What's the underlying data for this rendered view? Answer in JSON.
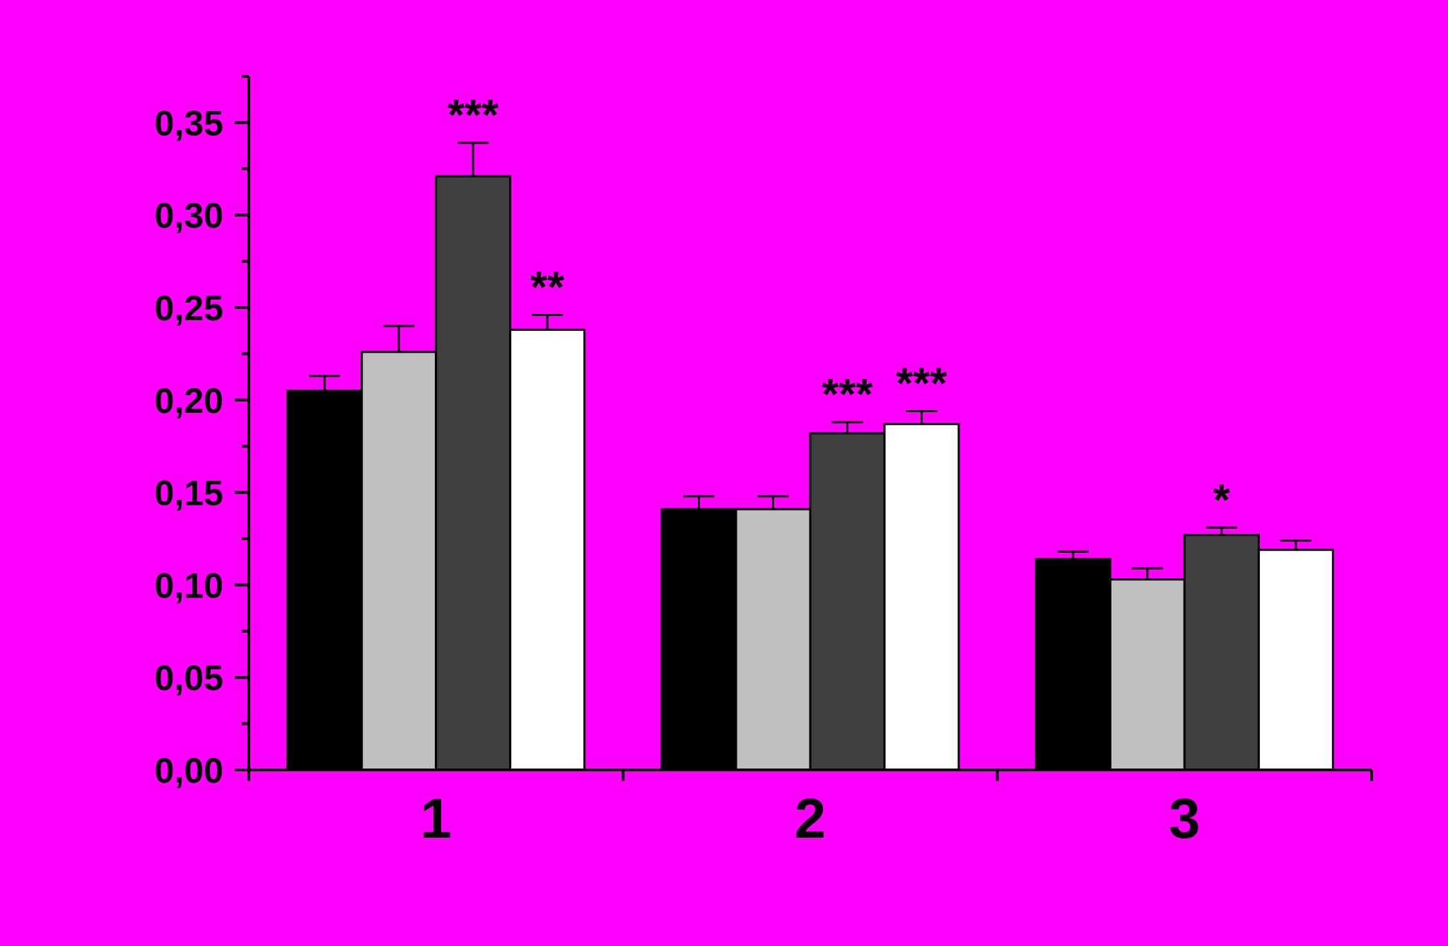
{
  "chart_data": {
    "type": "bar",
    "categories": [
      "1",
      "2",
      "3"
    ],
    "series": [
      {
        "color": "#000000",
        "values": [
          0.205,
          0.141,
          0.114
        ],
        "errors": [
          0.008,
          0.007,
          0.004
        ]
      },
      {
        "color": "#c0c0c0",
        "values": [
          0.226,
          0.141,
          0.103
        ],
        "errors": [
          0.014,
          0.007,
          0.006
        ]
      },
      {
        "color": "#404040",
        "values": [
          0.321,
          0.182,
          0.127
        ],
        "errors": [
          0.018,
          0.006,
          0.004
        ]
      },
      {
        "color": "#ffffff",
        "values": [
          0.238,
          0.187,
          0.119
        ],
        "errors": [
          0.008,
          0.007,
          0.005
        ]
      }
    ],
    "ylim": [
      0,
      0.375
    ],
    "yticks": [
      "0,00",
      "0,05",
      "0,10",
      "0,15",
      "0,20",
      "0,25",
      "0,30",
      "0,35"
    ],
    "ytick_values": [
      0,
      0.05,
      0.1,
      0.15,
      0.2,
      0.25,
      0.3,
      0.35
    ],
    "annotations": [
      {
        "category": 0,
        "series": 2,
        "text": "***"
      },
      {
        "category": 0,
        "series": 3,
        "text": "**"
      },
      {
        "category": 1,
        "series": 2,
        "text": "***"
      },
      {
        "category": 1,
        "series": 3,
        "text": "***"
      },
      {
        "category": 2,
        "series": 2,
        "text": "*"
      }
    ],
    "background": "#ff00ff",
    "grid": false,
    "legend": "none",
    "title": "",
    "xlabel": "",
    "ylabel": ""
  }
}
